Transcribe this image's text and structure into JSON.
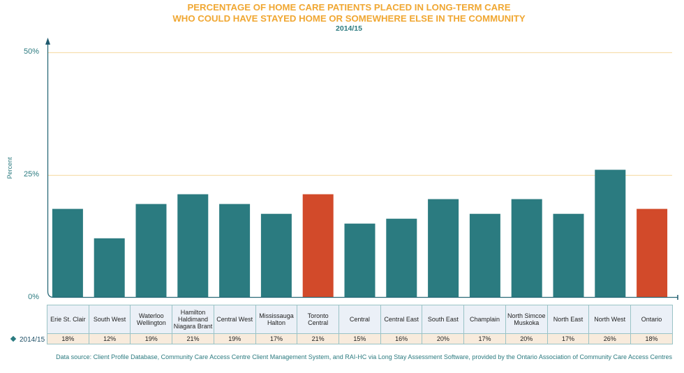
{
  "chart_data": {
    "type": "bar",
    "title": "PERCENTAGE OF HOME CARE PATIENTS PLACED IN LONG-TERM CARE",
    "title_line2": "WHO COULD HAVE STAYED HOME OR SOMEWHERE ELSE IN THE COMMUNITY",
    "subtitle": "2014/15",
    "ylabel": "Percent",
    "xlabel": "",
    "ylim": [
      0,
      50
    ],
    "yticks": [
      0,
      25,
      50
    ],
    "ytick_labels": [
      "0%",
      "25%",
      "50%"
    ],
    "grid": true,
    "categories": [
      "Erie St. Clair",
      "South West",
      "Waterloo Wellington",
      "Hamilton Haldimand Niagara Brant",
      "Central West",
      "Mississauga Halton",
      "Toronto Central",
      "Central",
      "Central East",
      "South East",
      "Champlain",
      "North Simcoe Muskoka",
      "North East",
      "North West",
      "Ontario"
    ],
    "series": [
      {
        "name": "2014/15",
        "values": [
          18,
          12,
          19,
          21,
          19,
          17,
          21,
          15,
          16,
          20,
          17,
          20,
          17,
          26,
          18
        ],
        "value_labels": [
          "18%",
          "12%",
          "19%",
          "21%",
          "19%",
          "17%",
          "21%",
          "15%",
          "16%",
          "20%",
          "17%",
          "20%",
          "17%",
          "26%",
          "18%"
        ]
      }
    ],
    "highlight_categories": [
      "Toronto Central",
      "Ontario"
    ],
    "colors": {
      "bar": "#2b7b80",
      "highlight": "#d24a2a",
      "gridline": "#f7dfae",
      "axis": "#2a6a78",
      "title": "#f0a732",
      "text": "#2c7b80"
    }
  },
  "footer": {
    "source": "Data source: Client Profile Database, Community Care Access Centre Client Management System, and RAI-HC via Long Stay Assessment Software, provided by the Ontario Association of Community Care Access Centres"
  }
}
